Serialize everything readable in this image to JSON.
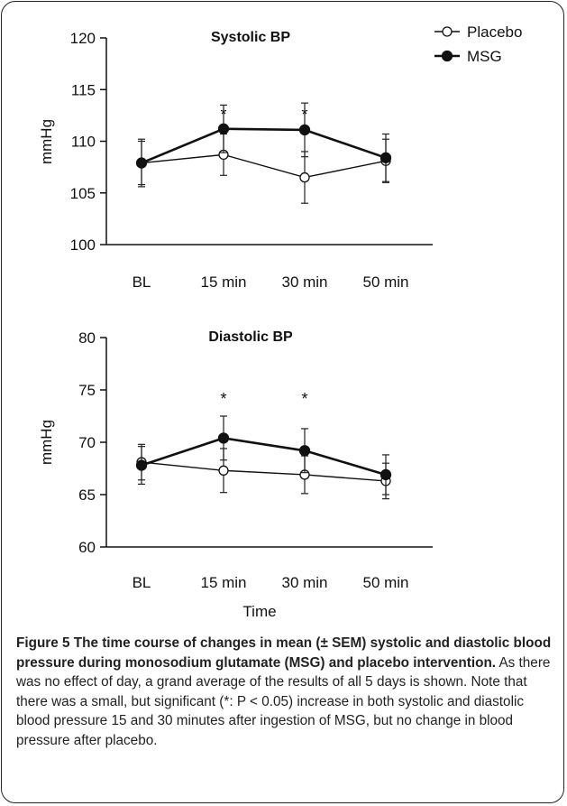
{
  "chart_data": [
    {
      "type": "line",
      "title": "Systolic BP",
      "ylabel": "mmHg",
      "xlabel": "",
      "categories": [
        "BL",
        "15 min",
        "30 min",
        "50 min"
      ],
      "ylim": [
        100,
        120
      ],
      "yticks": [
        100,
        105,
        110,
        115,
        120
      ],
      "series": [
        {
          "name": "Placebo",
          "marker": "open-circle",
          "values": [
            107.9,
            108.7,
            106.5,
            108.1
          ],
          "errors": [
            2.1,
            2.0,
            2.5,
            2.1
          ]
        },
        {
          "name": "MSG",
          "marker": "filled-circle",
          "values": [
            107.9,
            111.2,
            111.1,
            108.4
          ],
          "errors": [
            2.3,
            2.3,
            2.6,
            2.3
          ]
        }
      ],
      "annotations": [
        {
          "text": "*",
          "category": "15 min"
        },
        {
          "text": "*",
          "category": "30 min"
        }
      ],
      "legend": "top-right"
    },
    {
      "type": "line",
      "title": "Diastolic BP",
      "ylabel": "mmHg",
      "xlabel": "Time",
      "categories": [
        "BL",
        "15 min",
        "30 min",
        "50 min"
      ],
      "ylim": [
        60,
        80
      ],
      "yticks": [
        60,
        65,
        70,
        75,
        80
      ],
      "series": [
        {
          "name": "Placebo",
          "marker": "open-circle",
          "values": [
            68.1,
            67.3,
            66.9,
            66.3
          ],
          "errors": [
            1.7,
            2.1,
            1.8,
            1.7
          ]
        },
        {
          "name": "MSG",
          "marker": "filled-circle",
          "values": [
            67.8,
            70.4,
            69.2,
            66.9
          ],
          "errors": [
            1.8,
            2.1,
            2.1,
            1.9
          ]
        }
      ],
      "annotations": [
        {
          "text": "*",
          "category": "15 min"
        },
        {
          "text": "*",
          "category": "30 min"
        }
      ]
    }
  ],
  "caption": {
    "label": "Figure 5",
    "bold_text": "The time course of changes in mean (± SEM) systolic and diastolic blood pressure during monosodium glutamate (MSG) and placebo intervention.",
    "text": "As there was no effect of day, a grand average of the results of all 5 days is shown. Note that there was a small, but significant (*: P < 0.05) increase in both systolic and diastolic blood pressure 15 and 30 minutes after ingestion of MSG, but no change in blood pressure after placebo."
  }
}
